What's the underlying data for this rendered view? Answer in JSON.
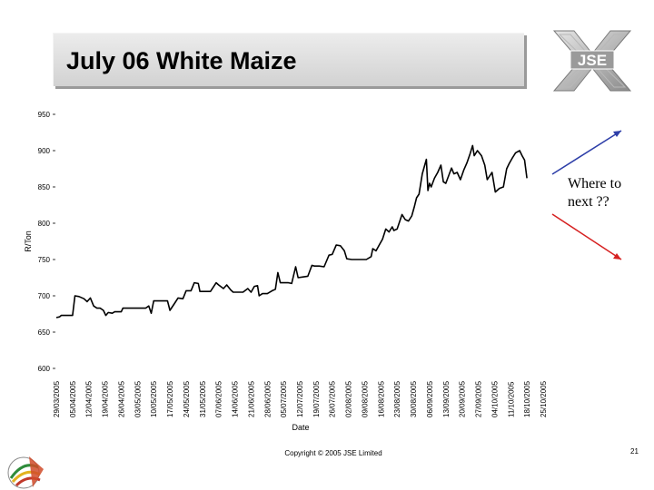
{
  "title": "July 06 White Maize",
  "logo_text": "JSE",
  "annotation": {
    "line1": "Where to",
    "line2": "next ??"
  },
  "copyright": "Copyright © 2005 JSE Limited",
  "slide_number": "21",
  "colors": {
    "line": "#000000",
    "arrow_up": "#2d3ea8",
    "arrow_down": "#d62020"
  },
  "chart_data": {
    "type": "line",
    "xlabel": "Date",
    "ylabel": "R/Ton",
    "ylim": [
      600,
      950
    ],
    "yticks": [
      600,
      650,
      700,
      750,
      800,
      850,
      900,
      950
    ],
    "grid": false,
    "x_tick_labels": [
      "29/03/2005",
      "05/04/2005",
      "12/04/2005",
      "19/04/2005",
      "26/04/2005",
      "03/05/2005",
      "10/05/2005",
      "17/05/2005",
      "24/05/2005",
      "31/05/2005",
      "07/06/2005",
      "14/06/2005",
      "21/06/2005",
      "28/06/2005",
      "05/07/2005",
      "12/07/2005",
      "19/07/2005",
      "26/07/2005",
      "02/08/2005",
      "09/08/2005",
      "16/08/2005",
      "23/08/2005",
      "30/08/2005",
      "06/09/2005",
      "13/09/2005",
      "20/09/2005",
      "27/09/2005",
      "04/10/2005",
      "11/10/2005",
      "18/10/2005",
      "25/10/2005"
    ],
    "series": [
      {
        "values": [
          [
            0,
            670
          ],
          [
            0.2,
            671
          ],
          [
            0.3,
            673
          ],
          [
            0.6,
            673
          ],
          [
            1.0,
            673
          ],
          [
            1.15,
            700
          ],
          [
            1.4,
            699
          ],
          [
            1.7,
            696
          ],
          [
            1.9,
            692
          ],
          [
            2.1,
            697
          ],
          [
            2.3,
            686
          ],
          [
            2.5,
            683
          ],
          [
            2.7,
            683
          ],
          [
            2.9,
            680
          ],
          [
            3.05,
            673
          ],
          [
            3.2,
            677
          ],
          [
            3.45,
            676
          ],
          [
            3.6,
            678
          ],
          [
            3.8,
            678
          ],
          [
            4.0,
            678
          ],
          [
            4.1,
            683
          ],
          [
            4.4,
            683
          ],
          [
            4.7,
            683
          ],
          [
            5.0,
            683
          ],
          [
            5.3,
            683
          ],
          [
            5.5,
            683
          ],
          [
            5.7,
            686
          ],
          [
            5.85,
            676
          ],
          [
            6.0,
            693
          ],
          [
            6.3,
            693
          ],
          [
            6.6,
            693
          ],
          [
            6.85,
            693
          ],
          [
            7.0,
            680
          ],
          [
            7.3,
            690
          ],
          [
            7.5,
            697
          ],
          [
            7.8,
            696
          ],
          [
            8.0,
            707
          ],
          [
            8.3,
            707
          ],
          [
            8.5,
            718
          ],
          [
            8.75,
            717
          ],
          [
            8.85,
            706
          ],
          [
            9.2,
            706
          ],
          [
            9.5,
            706
          ],
          [
            9.85,
            718
          ],
          [
            10.0,
            715
          ],
          [
            10.3,
            710
          ],
          [
            10.5,
            715
          ],
          [
            10.75,
            708
          ],
          [
            10.9,
            705
          ],
          [
            11.2,
            705
          ],
          [
            11.5,
            705
          ],
          [
            11.8,
            710
          ],
          [
            12.0,
            705
          ],
          [
            12.2,
            713
          ],
          [
            12.4,
            714
          ],
          [
            12.5,
            700
          ],
          [
            12.7,
            703
          ],
          [
            13.0,
            703
          ],
          [
            13.3,
            707
          ],
          [
            13.5,
            709
          ],
          [
            13.65,
            732
          ],
          [
            13.8,
            718
          ],
          [
            14.0,
            718
          ],
          [
            14.3,
            718
          ],
          [
            14.5,
            717
          ],
          [
            14.75,
            740
          ],
          [
            14.9,
            725
          ],
          [
            15.2,
            726
          ],
          [
            15.5,
            727
          ],
          [
            15.75,
            742
          ],
          [
            15.9,
            741
          ],
          [
            16.2,
            741
          ],
          [
            16.5,
            740
          ],
          [
            16.8,
            756
          ],
          [
            17.0,
            757
          ],
          [
            17.25,
            770
          ],
          [
            17.5,
            769
          ],
          [
            17.75,
            762
          ],
          [
            17.9,
            751
          ],
          [
            18.2,
            750
          ],
          [
            18.5,
            750
          ],
          [
            18.8,
            750
          ],
          [
            19.1,
            750
          ],
          [
            19.4,
            754
          ],
          [
            19.5,
            765
          ],
          [
            19.7,
            762
          ],
          [
            19.9,
            770
          ],
          [
            20.1,
            778
          ],
          [
            20.3,
            792
          ],
          [
            20.5,
            788
          ],
          [
            20.7,
            795
          ],
          [
            20.8,
            790
          ],
          [
            21.0,
            792
          ],
          [
            21.3,
            812
          ],
          [
            21.5,
            805
          ],
          [
            21.7,
            803
          ],
          [
            21.9,
            810
          ],
          [
            22.05,
            822
          ],
          [
            22.2,
            835
          ],
          [
            22.35,
            840
          ],
          [
            22.55,
            868
          ],
          [
            22.7,
            880
          ],
          [
            22.8,
            888
          ],
          [
            22.9,
            845
          ],
          [
            23.0,
            855
          ],
          [
            23.1,
            850
          ],
          [
            23.3,
            862
          ],
          [
            23.5,
            870
          ],
          [
            23.7,
            880
          ],
          [
            23.85,
            857
          ],
          [
            24.0,
            855
          ],
          [
            24.2,
            867
          ],
          [
            24.35,
            876
          ],
          [
            24.5,
            868
          ],
          [
            24.7,
            870
          ],
          [
            24.9,
            860
          ],
          [
            25.1,
            873
          ],
          [
            25.3,
            883
          ],
          [
            25.5,
            896
          ],
          [
            25.65,
            907
          ],
          [
            25.75,
            893
          ],
          [
            25.95,
            900
          ],
          [
            26.2,
            893
          ],
          [
            26.4,
            880
          ],
          [
            26.55,
            860
          ],
          [
            26.7,
            865
          ],
          [
            26.85,
            870
          ],
          [
            27.05,
            843
          ],
          [
            27.3,
            848
          ],
          [
            27.55,
            850
          ],
          [
            27.75,
            875
          ],
          [
            27.9,
            882
          ],
          [
            28.1,
            890
          ],
          [
            28.3,
            897
          ],
          [
            28.55,
            900
          ],
          [
            28.7,
            893
          ],
          [
            28.85,
            887
          ],
          [
            29.0,
            862
          ]
        ]
      }
    ]
  }
}
